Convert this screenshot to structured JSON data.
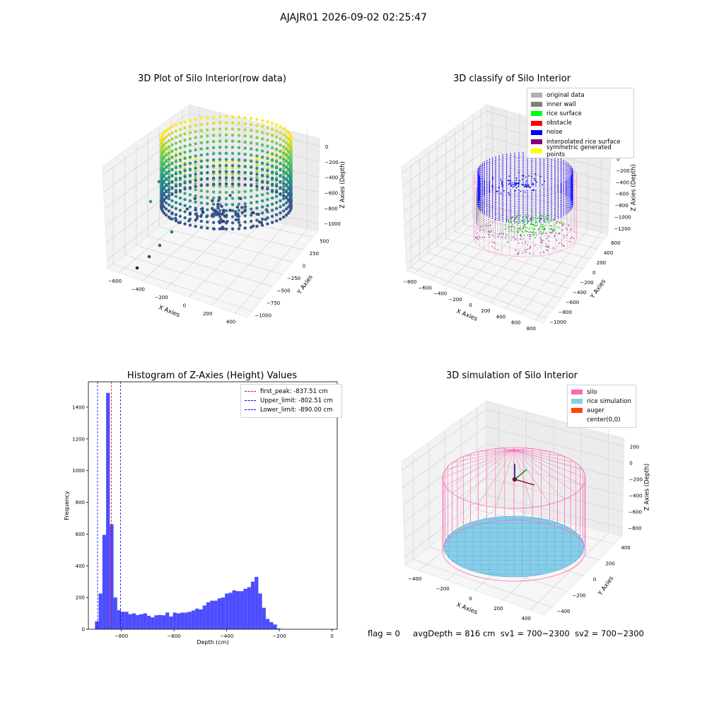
{
  "figure": {
    "suptitle": "AJAJR01 2026-09-02 02:25:47",
    "status": {
      "flag": "flag = 0",
      "avg_depth": "avgDepth = 816 cm",
      "sv1": "sv1 = 700~2300",
      "sv2": "sv2 = 700~2300"
    }
  },
  "colors": {
    "hist_bar": "#4d4dff",
    "first_peak_line": "#ff0000",
    "limit_lines": "#0000ff",
    "silo": "#ff69b4",
    "rice": "#87ceeb",
    "auger": "#ff4500",
    "noise": "#0000ff",
    "rice_surface": "#00ff00",
    "interpolated": "#800080",
    "inner_wall": "#808080"
  },
  "chart_data": [
    {
      "type": "scatter",
      "title": "3D Plot of Silo Interior(row data)",
      "projection": "3d",
      "colormap": "viridis",
      "xlabel": "X Axies",
      "ylabel": "Y Axies",
      "zlabel": "Z Axies (Depth)",
      "xticks": [
        "−600",
        "−400",
        "−200",
        "0",
        "200",
        "400"
      ],
      "yticks": [
        "−1000",
        "−750",
        "−500",
        "−250",
        "0",
        "250",
        "500"
      ],
      "zticks": [
        "0",
        "−200",
        "−400",
        "−600",
        "−800",
        "−1000"
      ],
      "xlim": [
        -700,
        500
      ],
      "ylim": [
        -1100,
        600
      ],
      "zlim": [
        -1100,
        50
      ]
    },
    {
      "type": "scatter",
      "title": "3D classify of Silo Interior",
      "projection": "3d",
      "xlabel": "X Axies",
      "ylabel": "Y Axies",
      "zlabel": "Z Axies (Depth)",
      "xticks": [
        "−800",
        "−600",
        "−400",
        "−200",
        "0",
        "200",
        "400",
        "600",
        "800"
      ],
      "yticks": [
        "−1000",
        "−800",
        "−600",
        "−400",
        "−200",
        "0",
        "200",
        "400",
        "600"
      ],
      "zticks": [
        "200",
        "0",
        "−200",
        "−400",
        "−600",
        "−800",
        "−1000",
        "−1200"
      ],
      "xlim": [
        -900,
        850
      ],
      "ylim": [
        -1050,
        650
      ],
      "zlim": [
        -1300,
        250
      ],
      "legend": [
        "original data",
        "inner wall",
        "rice surface",
        "obstacle",
        "noise",
        "interpolated rice surface",
        "symmetric generated points"
      ],
      "legend_colors": [
        "#b0b0b0",
        "#808080",
        "#00ff00",
        "#ff0000",
        "#0000ff",
        "#800080",
        "#ffff00"
      ],
      "legend_loc": "upper right"
    },
    {
      "type": "bar",
      "title": "Histogram of Z-Axies (Height) Values",
      "xlabel": "Depth (cm)",
      "ylabel": "Frequency",
      "xlim": [
        -925,
        20
      ],
      "ylim": [
        0,
        1560
      ],
      "xticks": [
        -800,
        -600,
        -400,
        -200,
        0
      ],
      "xtick_labels": [
        "−800",
        "−600",
        "−400",
        "−200",
        "0"
      ],
      "yticks": [
        0,
        200,
        400,
        600,
        800,
        1000,
        1200,
        1400
      ],
      "bin_start": -900,
      "bin_width": 14.1,
      "values": [
        50,
        225,
        595,
        1490,
        662,
        200,
        120,
        110,
        110,
        95,
        100,
        90,
        95,
        100,
        85,
        75,
        88,
        90,
        88,
        105,
        80,
        105,
        100,
        105,
        105,
        110,
        118,
        130,
        125,
        150,
        170,
        180,
        180,
        195,
        200,
        225,
        230,
        245,
        240,
        240,
        255,
        265,
        300,
        330,
        225,
        135,
        65,
        45,
        30,
        5
      ],
      "vlines": [
        {
          "x": -837.51,
          "label": "first_peak: -837.51 cm",
          "color": "#ff0000"
        },
        {
          "x": -802.51,
          "label": "Upper_limit: -802.51 cm",
          "color": "#0000ff"
        },
        {
          "x": -890.0,
          "label": "Lower_limit: -890.00 cm",
          "color": "#0000ff"
        }
      ],
      "legend_loc": "upper right"
    },
    {
      "type": "surface",
      "title": "3D simulation of Silo Interior",
      "projection": "3d",
      "xlabel": "X Axies",
      "ylabel": "Y Axies",
      "zlabel": "Z Axies (Depth)",
      "xticks": [
        "−400",
        "−200",
        "0",
        "200",
        "400"
      ],
      "yticks": [
        "−400",
        "−200",
        "0",
        "200",
        "400"
      ],
      "zticks": [
        "200",
        "0",
        "−200",
        "−400",
        "−600",
        "−800"
      ],
      "xlim": [
        -550,
        550
      ],
      "ylim": [
        -550,
        550
      ],
      "zlim": [
        -950,
        300
      ],
      "legend": [
        "silo",
        "rice simulation",
        "auger",
        "center(0,0)"
      ],
      "legend_colors": [
        "#ff69b4",
        "#87ceeb",
        "#ff4500",
        "#ffffff"
      ],
      "legend_loc": "upper right",
      "rice_level": -816
    }
  ]
}
